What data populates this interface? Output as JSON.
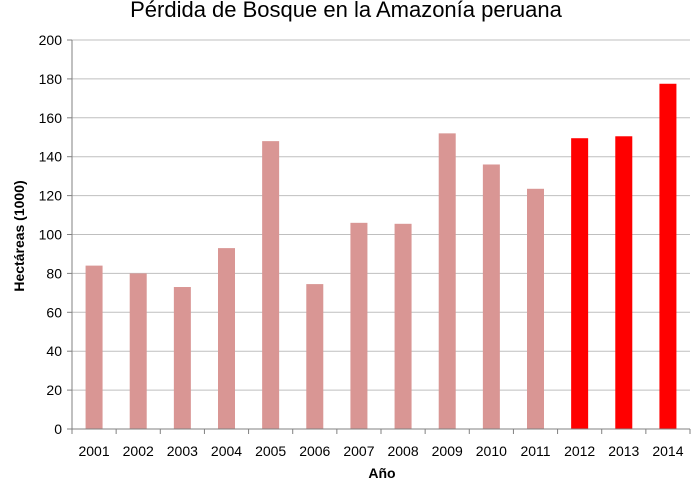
{
  "chart_data": {
    "type": "bar",
    "title": "Pérdida de Bosque en la Amazonía peruana",
    "xlabel": "Año",
    "ylabel": "Hectáreas (1000)",
    "ylim": [
      0,
      200
    ],
    "yticks": [
      0,
      20,
      40,
      60,
      80,
      100,
      120,
      140,
      160,
      180,
      200
    ],
    "grid": true,
    "categories": [
      "2001",
      "2002",
      "2003",
      "2004",
      "2005",
      "2006",
      "2007",
      "2008",
      "2009",
      "2010",
      "2011",
      "2012",
      "2013",
      "2014"
    ],
    "values": [
      84,
      80,
      73,
      93,
      148,
      74.5,
      106,
      105.5,
      152,
      136,
      123.5,
      149.5,
      150.5,
      177.5
    ],
    "bar_colors": [
      "#d99694",
      "#d99694",
      "#d99694",
      "#d99694",
      "#d99694",
      "#d99694",
      "#d99694",
      "#d99694",
      "#d99694",
      "#d99694",
      "#d99694",
      "#ff0000",
      "#ff0000",
      "#ff0000"
    ],
    "grid_color": "#bfbfbf"
  }
}
